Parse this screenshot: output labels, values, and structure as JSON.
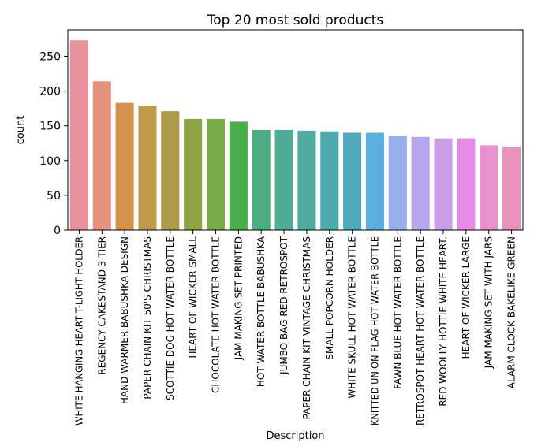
{
  "chart_data": {
    "type": "bar",
    "title": "Top 20 most sold products",
    "xlabel": "Description",
    "ylabel": "count",
    "ylim": [
      0,
      288
    ],
    "yticks": [
      0,
      50,
      100,
      150,
      200,
      250
    ],
    "grid": false,
    "categories": [
      "WHITE HANGING HEART T-LIGHT HOLDER",
      "REGENCY CAKESTAND 3 TIER",
      "HAND WARMER BABUSHKA DESIGN",
      "PAPER CHAIN KIT 50'S CHRISTMAS",
      "SCOTTIE DOG HOT WATER BOTTLE",
      "HEART OF WICKER SMALL",
      "CHOCOLATE HOT WATER BOTTLE",
      "JAM MAKING SET PRINTED",
      "HOT WATER BOTTLE BABUSHKA",
      "JUMBO BAG RED RETROSPOT",
      "PAPER CHAIN KIT VINTAGE CHRISTMAS",
      "SMALL POPCORN HOLDER",
      "WHITE SKULL HOT WATER BOTTLE",
      "KNITTED UNION FLAG HOT WATER BOTTLE",
      "FAWN BLUE HOT WATER BOTTLE",
      "RETROSPOT HEART HOT WATER BOTTLE",
      "RED WOOLLY HOTTIE WHITE HEART.",
      "HEART OF WICKER LARGE",
      "JAM MAKING SET WITH JARS",
      "ALARM CLOCK BAKELIKE GREEN"
    ],
    "values": [
      273,
      214,
      183,
      179,
      171,
      160,
      160,
      156,
      144,
      144,
      143,
      142,
      140,
      140,
      136,
      134,
      132,
      132,
      122,
      120
    ],
    "colors": [
      "#e8929b",
      "#e3937e",
      "#d4914e",
      "#be9a4c",
      "#ad9a4a",
      "#8ea546",
      "#77ac48",
      "#4aae49",
      "#4aae82",
      "#4dac95",
      "#4dab9f",
      "#4eaaac",
      "#50a9ba",
      "#5aaee0",
      "#99aee8",
      "#b6a7ec",
      "#cc9ee8",
      "#e58be6",
      "#e791cd",
      "#e892ba"
    ]
  }
}
